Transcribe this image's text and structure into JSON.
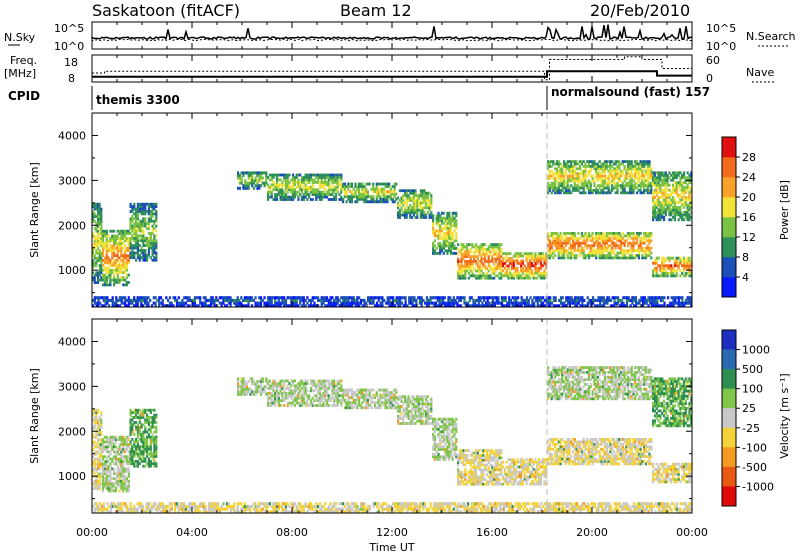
{
  "header": {
    "station": "Saskatoon (fitACF)",
    "beam": "Beam 12",
    "date": "20/Feb/2010"
  },
  "nsky_panel": {
    "left_label": "N.Sky",
    "right_label": "N.Search",
    "left_ticks": [
      "10^5",
      "10^0"
    ],
    "right_ticks": [
      "10^5",
      "10^0"
    ]
  },
  "freq_panel": {
    "left_label_top": "Freq.",
    "left_label_bottom": "[MHz]",
    "right_label": "Nave",
    "left_ticks": [
      "18",
      "8"
    ],
    "right_ticks": [
      "60",
      "0"
    ],
    "freq_series": {
      "x_hours": [
        0,
        18.2,
        18.2,
        22.6,
        22.6,
        24
      ],
      "values": [
        9.5,
        9.5,
        12.0,
        12.0,
        10.0,
        10.0
      ]
    },
    "nave_series": {
      "x_hours": [
        0,
        0.5,
        0.5,
        18.1,
        18.1,
        18.3,
        18.3,
        21.3,
        21.3,
        22.0,
        22.0,
        22.8,
        22.8,
        24
      ],
      "values": [
        20,
        20,
        24,
        24,
        5,
        5,
        50,
        50,
        56,
        56,
        50,
        50,
        30,
        30
      ]
    }
  },
  "cpid": {
    "label": "CPID",
    "modes": [
      {
        "name": "themis 3300",
        "start_hour": 0
      },
      {
        "name": "normalsound (fast) 157",
        "start_hour": 18.2
      }
    ]
  },
  "power_panel": {
    "ylabel": "Slant Range [km]",
    "yticks": [
      "1000",
      "2000",
      "3000",
      "4000"
    ],
    "colorbar_label": "Power [dB]",
    "colorbar_ticks": [
      "4",
      "8",
      "12",
      "16",
      "20",
      "24",
      "28"
    ]
  },
  "velocity_panel": {
    "ylabel": "Slant Range [km]",
    "yticks": [
      "1000",
      "2000",
      "3000",
      "4000"
    ],
    "colorbar_label": "Velocity [m s⁻¹]",
    "colorbar_ticks": [
      "1000",
      "500",
      "100",
      "25",
      "-25",
      "-100",
      "-500",
      "-1000"
    ]
  },
  "x_axis": {
    "title": "Time UT",
    "ticks": [
      "00:00",
      "04:00",
      "08:00",
      "12:00",
      "16:00",
      "20:00",
      "00:00"
    ]
  },
  "chart_data": {
    "type": "heatmap",
    "x_range_hours": [
      0,
      24
    ],
    "y_range_km": [
      180,
      4500
    ],
    "power_colors": [
      "#0a1aff",
      "#1d4fb8",
      "#2f8f5a",
      "#7ac243",
      "#f2e33a",
      "#f8a22b",
      "#f26a1c",
      "#e01010"
    ],
    "velocity_colors": [
      "#1d2fc0",
      "#2a6ab0",
      "#2f8f50",
      "#7fc64a",
      "#c8c8c8",
      "#f4d33a",
      "#f29a22",
      "#e85a14",
      "#e00a0a"
    ],
    "power_scale_db": [
      0,
      32
    ],
    "velocity_scale_ms": [
      -1000,
      1000
    ],
    "echo_bands": [
      {
        "t0": 0.0,
        "t1": 0.4,
        "r0": 700,
        "r1": 2500,
        "power_db": 16,
        "velocity": -25
      },
      {
        "t0": 0.4,
        "t1": 1.5,
        "r0": 650,
        "r1": 1900,
        "power_db": 22,
        "velocity": 25
      },
      {
        "t0": 1.5,
        "t1": 2.6,
        "r0": 1200,
        "r1": 2500,
        "power_db": 14,
        "velocity": 100
      },
      {
        "t0": 5.8,
        "t1": 7.0,
        "r0": 2800,
        "r1": 3200,
        "power_db": 14,
        "velocity": 25
      },
      {
        "t0": 7.0,
        "t1": 10.0,
        "r0": 2550,
        "r1": 3150,
        "power_db": 16,
        "velocity": 25
      },
      {
        "t0": 10.0,
        "t1": 12.2,
        "r0": 2500,
        "r1": 2950,
        "power_db": 16,
        "velocity": 25
      },
      {
        "t0": 12.2,
        "t1": 13.6,
        "r0": 2150,
        "r1": 2800,
        "power_db": 16,
        "velocity": 25
      },
      {
        "t0": 13.6,
        "t1": 14.6,
        "r0": 1350,
        "r1": 2300,
        "power_db": 18,
        "velocity": 25
      },
      {
        "t0": 14.6,
        "t1": 16.4,
        "r0": 800,
        "r1": 1600,
        "power_db": 24,
        "velocity": -25
      },
      {
        "t0": 16.4,
        "t1": 18.2,
        "r0": 800,
        "r1": 1400,
        "power_db": 26,
        "velocity": -25
      },
      {
        "t0": 18.2,
        "t1": 22.4,
        "r0": 1250,
        "r1": 1850,
        "power_db": 24,
        "velocity": -25
      },
      {
        "t0": 18.2,
        "t1": 22.4,
        "r0": 2700,
        "r1": 3450,
        "power_db": 18,
        "velocity": 25
      },
      {
        "t0": 22.4,
        "t1": 24.0,
        "r0": 850,
        "r1": 1300,
        "power_db": 24,
        "velocity": -25
      },
      {
        "t0": 22.4,
        "t1": 24.0,
        "r0": 2100,
        "r1": 3200,
        "power_db": 18,
        "velocity": 100
      },
      {
        "t0": 0.0,
        "t1": 24.0,
        "r0": 180,
        "r1": 420,
        "power_db": 6,
        "velocity": -25
      }
    ]
  }
}
